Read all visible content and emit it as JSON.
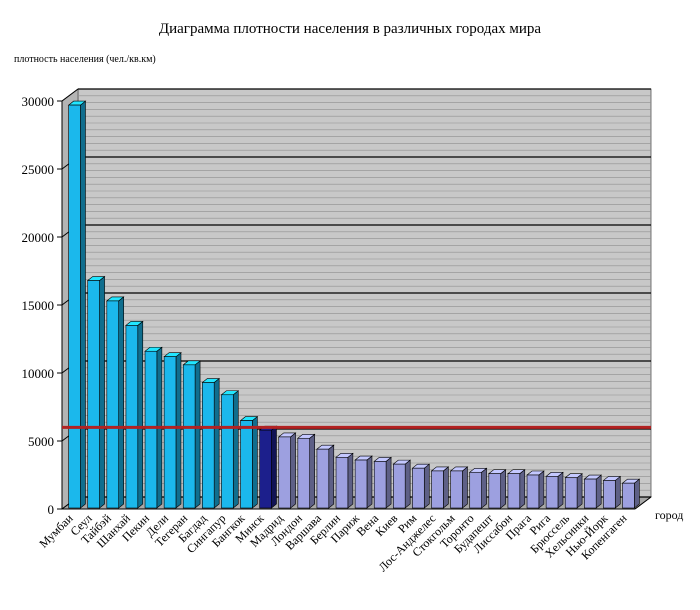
{
  "chart_data": {
    "type": "bar",
    "title": "Диаграмма плотности населения в различных городах мира",
    "ylabel": "плотность населения (чел./кв.км)",
    "xlabel": "город",
    "ylim": [
      0,
      30000
    ],
    "yticks": [
      0,
      5000,
      10000,
      15000,
      20000,
      25000,
      30000
    ],
    "reference_line": {
      "value": 6000,
      "color": "#b22222"
    },
    "grid": true,
    "colors": {
      "default": "#1bb8ec",
      "highlight": "#1c1f8c",
      "below": "#9da0e0",
      "plot_background": "#c8c8c8",
      "reference": "#b22222"
    },
    "highlight_category": "Минск",
    "categories": [
      "Мумбаи",
      "Сеул",
      "Тайбэй",
      "Шанхай",
      "Пекин",
      "Дели",
      "Тегеран",
      "Багдад",
      "Сингапур",
      "Бангкок",
      "Минск",
      "Мадрид",
      "Лондон",
      "Варшава",
      "Берлин",
      "Париж",
      "Вена",
      "Киев",
      "Рим",
      "Лос-Анджелес",
      "Стокгольм",
      "Торонто",
      "Будапешт",
      "Лиссабон",
      "Прага",
      "Рига",
      "Брюссель",
      "Хельсинки",
      "Нью-Йорк",
      "Копенгаген"
    ],
    "values": [
      29700,
      16800,
      15300,
      13500,
      11600,
      11200,
      10600,
      9300,
      8400,
      6500,
      5800,
      5300,
      5200,
      4400,
      3800,
      3600,
      3500,
      3300,
      3000,
      2800,
      2800,
      2700,
      2600,
      2600,
      2500,
      2400,
      2300,
      2200,
      2100,
      1900
    ]
  }
}
